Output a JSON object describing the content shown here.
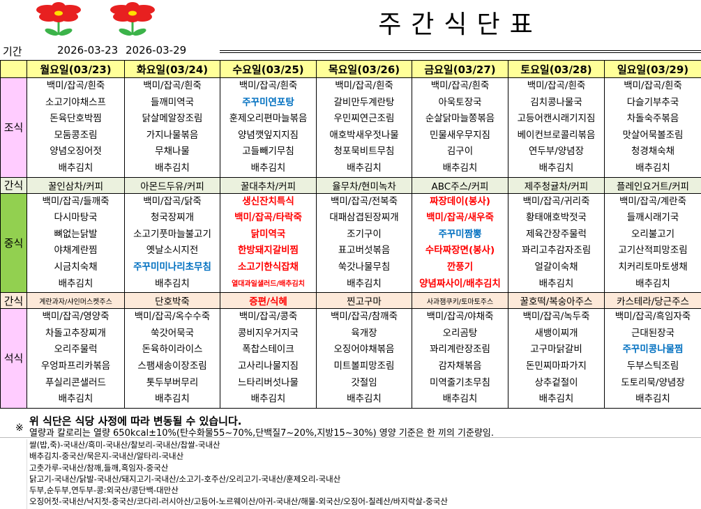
{
  "header": {
    "title": "주간식단표",
    "period_label": "기간",
    "start_date": "2026-03-23",
    "end_date": "2026-03-29"
  },
  "colors": {
    "header": "#ffff99",
    "breakfast_label": "#ffccff",
    "lunch_label": "#92d050",
    "snack1": "#ebf1de",
    "snack2": "#fde9d9",
    "dinner_label": "#ffccff",
    "highlight_red": "#ff0000",
    "highlight_blue": "#0070c0"
  },
  "days": [
    "월요일(03/23)",
    "화요일(03/24)",
    "수요일(03/25)",
    "목요일(03/26)",
    "금요일(03/27)",
    "토요일(03/28)",
    "일요일(03/29)"
  ],
  "labels": {
    "breakfast": "조식",
    "snack": "간식",
    "lunch": "중식",
    "dinner": "석식"
  },
  "breakfast": [
    [
      {
        "t": "백미/잡곡/흰죽"
      },
      {
        "t": "소고기야채스프"
      },
      {
        "t": "돈육단호박찜"
      },
      {
        "t": "모둠콩조림"
      },
      {
        "t": "양념오징어젓"
      },
      {
        "t": "배추김치"
      }
    ],
    [
      {
        "t": "백미/잡곡/흰죽"
      },
      {
        "t": "들깨미역국"
      },
      {
        "t": "닭살메알장조림"
      },
      {
        "t": "가지나물볶음"
      },
      {
        "t": "무채나물"
      },
      {
        "t": "배추김치"
      }
    ],
    [
      {
        "t": "백미/잡곡/흰죽"
      },
      {
        "t": "주꾸미연포탕",
        "s": "blue"
      },
      {
        "t": "훈제오리편마늘볶음"
      },
      {
        "t": "양념깻잎지지짐"
      },
      {
        "t": "고들빼기무침"
      },
      {
        "t": "배추김치"
      }
    ],
    [
      {
        "t": "백미/잡곡/흰죽"
      },
      {
        "t": "갈비만두계란탕"
      },
      {
        "t": "우민찌연근조림"
      },
      {
        "t": "애호박새우젓나물"
      },
      {
        "t": "청포묵비트무침"
      },
      {
        "t": "배추김치"
      }
    ],
    [
      {
        "t": "백미/잡곡/흰죽"
      },
      {
        "t": "아욱토장국"
      },
      {
        "t": "순살닭마늘쫑볶음"
      },
      {
        "t": "민물새우무지짐"
      },
      {
        "t": "김구이"
      },
      {
        "t": "배추김치"
      }
    ],
    [
      {
        "t": "백미/잡곡/흰죽"
      },
      {
        "t": "김치콩나물국"
      },
      {
        "t": "고등어캔시래기지짐"
      },
      {
        "t": "베이컨브로콜리볶음"
      },
      {
        "t": "연두부/양념장"
      },
      {
        "t": "배추김치"
      }
    ],
    [
      {
        "t": "백미/잡곡/흰죽"
      },
      {
        "t": "다슬기부추국"
      },
      {
        "t": "차돌숙주볶음"
      },
      {
        "t": "맛살어묵볼조림"
      },
      {
        "t": "청경채숙채"
      },
      {
        "t": "배추김치"
      }
    ]
  ],
  "snack1": [
    {
      "t": "꿀인삼차/커피"
    },
    {
      "t": "아몬드두유/커피"
    },
    {
      "t": "꿀대추차/커피"
    },
    {
      "t": "율무차/현미녹차"
    },
    {
      "t": "ABC주스/커피"
    },
    {
      "t": "제주청귤차/커피"
    },
    {
      "t": "플레인요거트/커피"
    }
  ],
  "lunch": [
    [
      {
        "t": "백미/잡곡/들깨죽"
      },
      {
        "t": "다시마탕국"
      },
      {
        "t": "뼈없는닭발"
      },
      {
        "t": "야채계란찜"
      },
      {
        "t": "시금치숙채"
      },
      {
        "t": "배추김치"
      }
    ],
    [
      {
        "t": "백미/잡곡/닭죽"
      },
      {
        "t": "청국장찌개"
      },
      {
        "t": "소고기풋마늘불고기"
      },
      {
        "t": "옛날소시지전"
      },
      {
        "t": "주꾸미미나리초무침",
        "s": "blue"
      },
      {
        "t": "배추김치"
      }
    ],
    [
      {
        "t": "생신잔치특식",
        "s": "red"
      },
      {
        "t": "백미/잡곡/타락죽",
        "s": "red"
      },
      {
        "t": "닭미역국",
        "s": "red"
      },
      {
        "t": "한방돼지갈비찜",
        "s": "red"
      },
      {
        "t": "소고기한식잡채",
        "s": "red"
      },
      {
        "t": "열대과일샐러드/배추김치",
        "s": "red small"
      }
    ],
    [
      {
        "t": "백미/잡곡/전복죽"
      },
      {
        "t": "대패삼겹된장찌개"
      },
      {
        "t": "조기구이"
      },
      {
        "t": "표고버섯볶음"
      },
      {
        "t": "쑥갓나물무침"
      },
      {
        "t": "배추김치"
      }
    ],
    [
      {
        "t": "짜장데이(봉사)",
        "s": "red"
      },
      {
        "t": "백미/잡곡/새우죽",
        "s": "red"
      },
      {
        "t": "주꾸미짬뽕",
        "s": "blue"
      },
      {
        "t": "수타짜장면(봉사)",
        "s": "red"
      },
      {
        "t": "깐풍기",
        "s": "red"
      },
      {
        "t": "양념짜사이/배추김치",
        "s": "red"
      }
    ],
    [
      {
        "t": "백미/잡곡/귀리죽"
      },
      {
        "t": "황태애호박젓국"
      },
      {
        "t": "제육간장주물럭"
      },
      {
        "t": "꽈리고추감자조림"
      },
      {
        "t": "얼갈이숙채"
      },
      {
        "t": "배추김치"
      }
    ],
    [
      {
        "t": "백미/잡곡/계란죽"
      },
      {
        "t": "들깨시래기국"
      },
      {
        "t": "오리불고기"
      },
      {
        "t": "고기산적피망조림"
      },
      {
        "t": "치커리토마토생채"
      },
      {
        "t": "배추김치"
      }
    ]
  ],
  "snack2": [
    {
      "t": "계란과자/샤인머스켓주스",
      "s": "small"
    },
    {
      "t": "단호박죽"
    },
    {
      "t": "증편/식혜",
      "s": "red"
    },
    {
      "t": "찐고구마"
    },
    {
      "t": "사과잼쿠키/토마토주스",
      "s": "small"
    },
    {
      "t": "꿀호떡/복숭아주스"
    },
    {
      "t": "카스테라/당근주스"
    }
  ],
  "dinner": [
    [
      {
        "t": "백미/잡곡/영양죽"
      },
      {
        "t": "차돌고추장찌개"
      },
      {
        "t": "오리주물럭"
      },
      {
        "t": "우엉파프리카볶음"
      },
      {
        "t": "푸실리콘샐러드"
      },
      {
        "t": "배추김치"
      }
    ],
    [
      {
        "t": "백미/잡곡/옥수수죽"
      },
      {
        "t": "쑥갓어묵국"
      },
      {
        "t": "돈육하이라이스"
      },
      {
        "t": "스팸새송이장조림"
      },
      {
        "t": "톳두부버무리"
      },
      {
        "t": "배추김치"
      }
    ],
    [
      {
        "t": "백미/잡곡/콩죽"
      },
      {
        "t": "콩비지우거지국"
      },
      {
        "t": "폭찹스테이크"
      },
      {
        "t": "고사리나물지짐"
      },
      {
        "t": "느타리버섯나물"
      },
      {
        "t": "배추김치"
      }
    ],
    [
      {
        "t": "백미/잡곡/참깨죽"
      },
      {
        "t": "육개장"
      },
      {
        "t": "오징어야채볶음"
      },
      {
        "t": "미트볼피망조림"
      },
      {
        "t": "갓절임"
      },
      {
        "t": "배추김치"
      }
    ],
    [
      {
        "t": "백미/잡곡/야채죽"
      },
      {
        "t": "오리곰탕"
      },
      {
        "t": "꽈리계란장조림"
      },
      {
        "t": "감자채볶음"
      },
      {
        "t": "미역줄기초무침"
      },
      {
        "t": "배추김치"
      }
    ],
    [
      {
        "t": "백미/잡곡/녹두죽"
      },
      {
        "t": "새뱅이찌개"
      },
      {
        "t": "고구마닭갈비"
      },
      {
        "t": "돈민찌마파가지"
      },
      {
        "t": "상추겉절이"
      },
      {
        "t": "배추김치"
      }
    ],
    [
      {
        "t": "백미/잡곡/흑임자죽"
      },
      {
        "t": "근대된장국"
      },
      {
        "t": "주꾸미콩나물찜",
        "s": "blue"
      },
      {
        "t": "두부스틱조림"
      },
      {
        "t": "도토리묵/양념장"
      },
      {
        "t": "배추김치"
      }
    ]
  ],
  "notice": {
    "mark": "※",
    "line1": "위 식단은 식당 사정에 따라 변동될 수 있습니다.",
    "line2": "열량과 칼로리는 열량 650kcal±10%(탄수화물55~70%,단백질7~20%,지방15~30%) 영양 기준은 한 끼의 기준량임."
  },
  "origin": [
    "쌀(밥,죽)-국내산/흑미-국내산/찰보리-국내산/찹쌀-국내산",
    "배추김치-중국산/묵은지-국내산/알타리-국내산",
    "고춧가루-국내산/참깨,들깨,흑임자-중국산",
    "닭고기-국내산/닭발-국내산/돼지고기-국내산/소고기-호주산/오리고기-국내산/훈제오리-국내산",
    "두부,순두부,연두부-콩:외국산/콩단백-대만산",
    "오징어젓-국내산/낙지젓-중국산/코다리-러시아산/고등어-노르웨이산/아귀-국내산/해물-외국산/오징어-칠레산/바지락살-중국산"
  ]
}
